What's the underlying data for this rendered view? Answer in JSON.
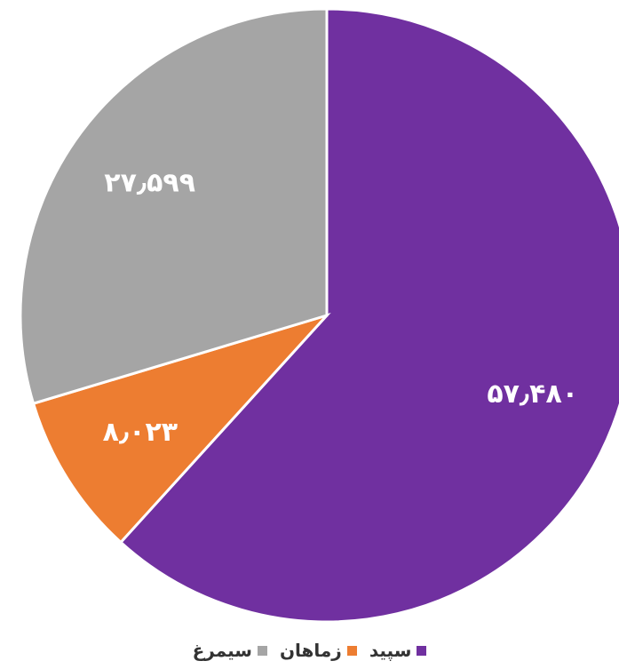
{
  "chart_data": {
    "type": "pie",
    "categories": [
      "سپید",
      "زماهان",
      "سیمرغ"
    ],
    "values": [
      57.48,
      8.023,
      27.599
    ],
    "value_labels": [
      "۵۷٫۴۸۰",
      "۸٫۰۲۳",
      "۲۷٫۵۹۹"
    ],
    "colors": [
      "#7030a0",
      "#ed7d31",
      "#a5a5a5"
    ],
    "legend": "bottom"
  }
}
